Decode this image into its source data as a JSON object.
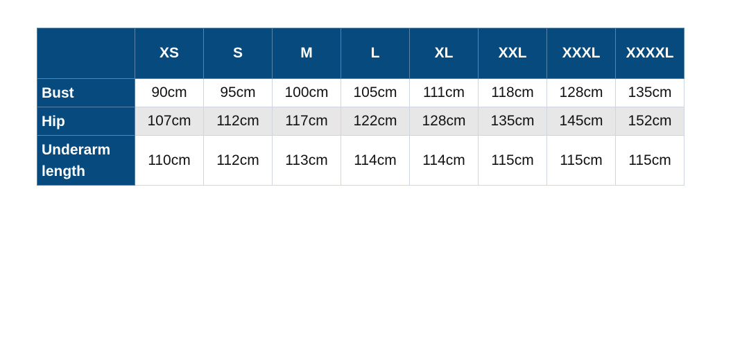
{
  "colors": {
    "header_bg": "#064a7e",
    "alt_row_bg": "#e7e7e7"
  },
  "table": {
    "corner": "",
    "columns": [
      "XS",
      "S",
      "M",
      "L",
      "XL",
      "XXL",
      "XXXL",
      "XXXXL"
    ],
    "rows": [
      {
        "label": "Bust",
        "values": [
          "90cm",
          "95cm",
          "100cm",
          "105cm",
          "111cm",
          "118cm",
          "128cm",
          "135cm"
        ]
      },
      {
        "label": "Hip",
        "values": [
          "107cm",
          "112cm",
          "117cm",
          "122cm",
          "128cm",
          "135cm",
          "145cm",
          "152cm"
        ]
      },
      {
        "label": "Underarm length",
        "values": [
          "110cm",
          "112cm",
          "113cm",
          "114cm",
          "114cm",
          "115cm",
          "115cm",
          "115cm"
        ]
      }
    ]
  }
}
